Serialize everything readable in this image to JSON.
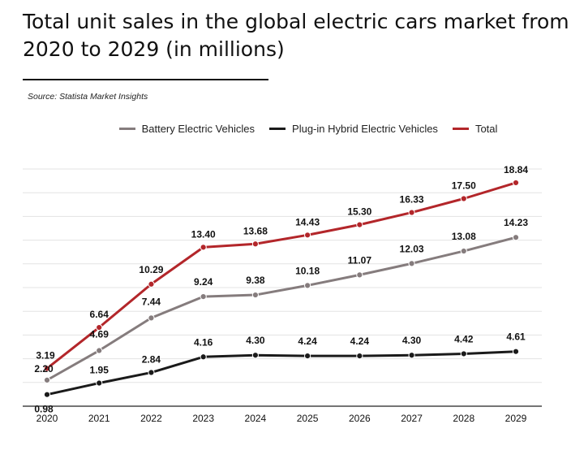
{
  "chart_data": {
    "type": "line",
    "title": "Total unit sales in the global electric cars market from 2020 to 2029 (in millions)",
    "source": "Source: Statista Market Insights",
    "categories": [
      "2020",
      "2021",
      "2022",
      "2023",
      "2024",
      "2025",
      "2026",
      "2027",
      "2028",
      "2029"
    ],
    "series": [
      {
        "name": "Battery Electric Vehicles",
        "color": "#857c7d",
        "values": [
          2.2,
          4.69,
          7.44,
          9.24,
          9.38,
          10.18,
          11.07,
          12.03,
          13.08,
          14.23
        ],
        "labels": [
          "2.20",
          "4.69",
          "7.44",
          "9.24",
          "9.38",
          "10.18",
          "11.07",
          "12.03",
          "13.08",
          "14.23"
        ]
      },
      {
        "name": "Plug-in Hybrid Electric Vehicles",
        "color": "#1a1a1a",
        "values": [
          0.98,
          1.95,
          2.84,
          4.16,
          4.3,
          4.24,
          4.24,
          4.3,
          4.42,
          4.61
        ],
        "labels": [
          "0.98",
          "1.95",
          "2.84",
          "4.16",
          "4.30",
          "4.24",
          "4.24",
          "4.30",
          "4.42",
          "4.61"
        ]
      },
      {
        "name": "Total",
        "color": "#b3262a",
        "values": [
          3.19,
          6.64,
          10.29,
          13.4,
          13.68,
          14.43,
          15.3,
          16.33,
          17.5,
          18.84
        ],
        "labels": [
          "3.19",
          "6.64",
          "10.29",
          "13.40",
          "13.68",
          "14.43",
          "15.30",
          "16.33",
          "17.50",
          "18.84"
        ]
      }
    ],
    "ylim": [
      0,
      20
    ],
    "grid": true,
    "legend": "top-center",
    "xlabel": "",
    "ylabel": ""
  }
}
